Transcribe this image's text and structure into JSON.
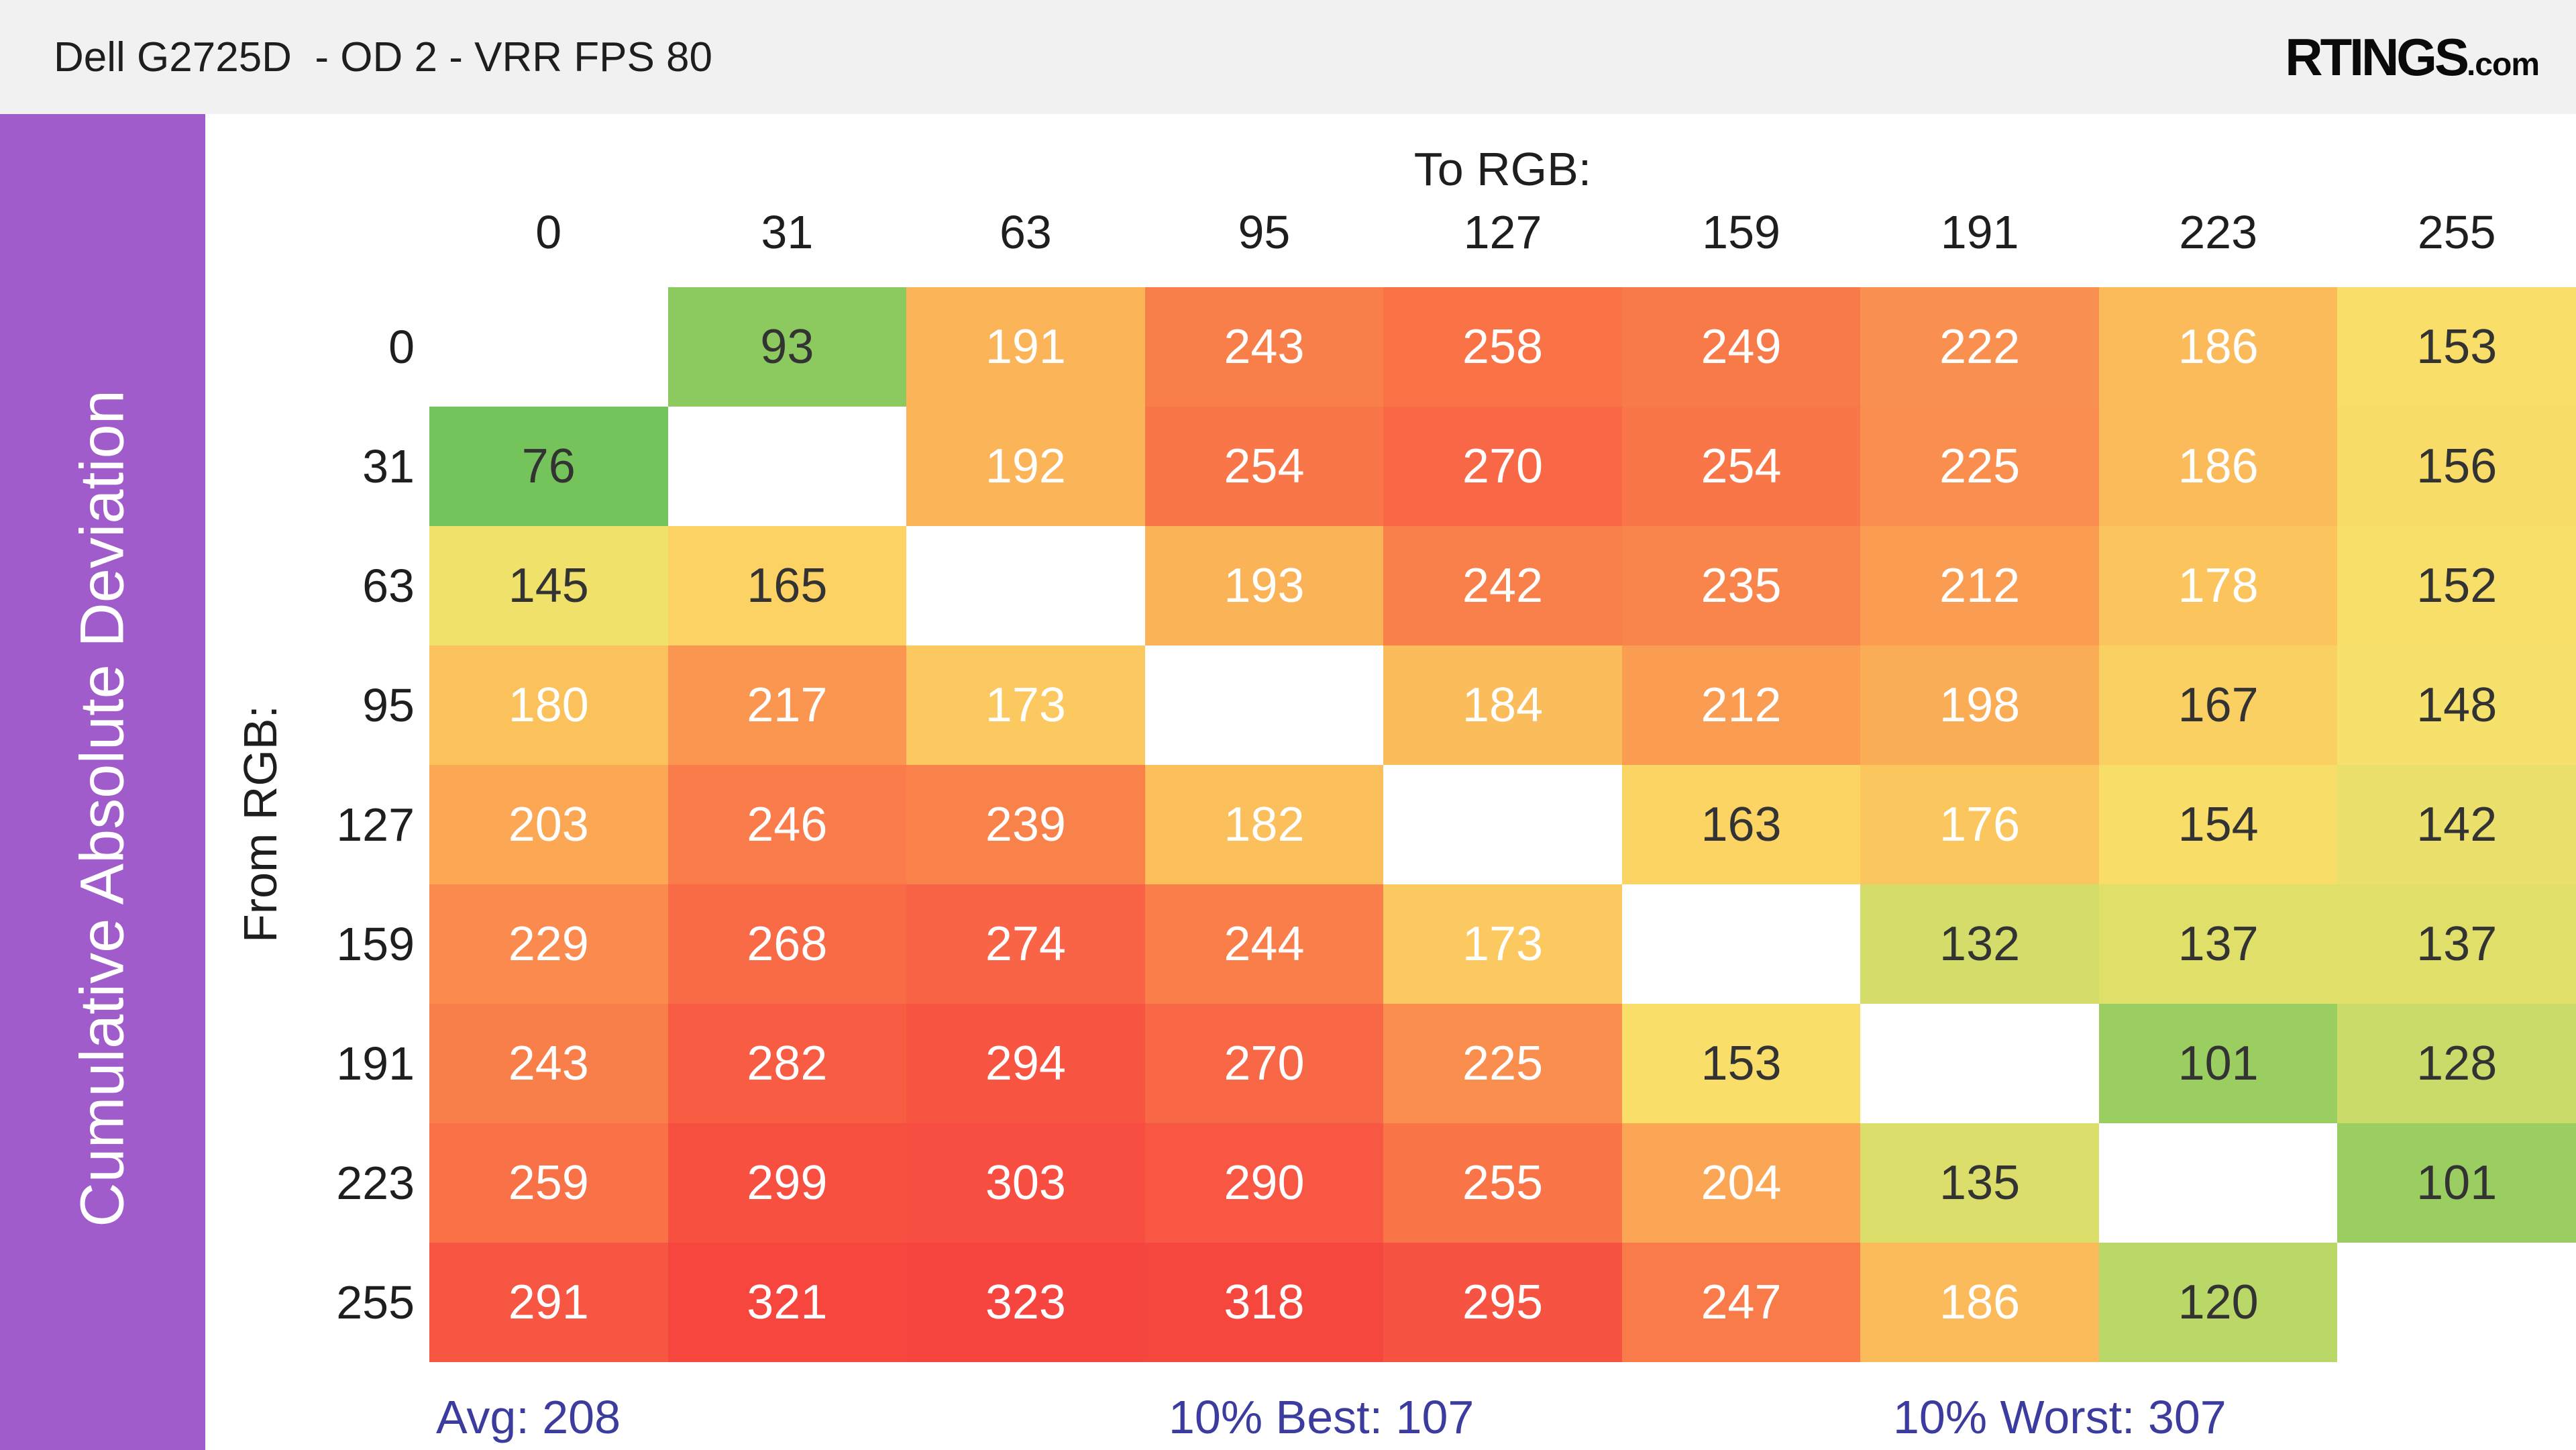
{
  "header": {
    "title": "Dell G2725D  - OD 2 - VRR FPS 80",
    "background": "#f1f1f1",
    "logo_main": "RTINGS",
    "logo_suffix": ".com"
  },
  "sidebar": {
    "label": "Cumulative Absolute Deviation",
    "color": "#a15ccb"
  },
  "chart_data": {
    "type": "heatmap",
    "title": "Cumulative Absolute Deviation",
    "x_axis_label": "To RGB:",
    "y_axis_label": "From RGB:",
    "x_labels": [
      "0",
      "31",
      "63",
      "95",
      "127",
      "159",
      "191",
      "223",
      "255"
    ],
    "y_labels": [
      "0",
      "31",
      "63",
      "95",
      "127",
      "159",
      "191",
      "223",
      "255"
    ],
    "values": [
      [
        null,
        93,
        191,
        243,
        258,
        249,
        222,
        186,
        153
      ],
      [
        76,
        null,
        192,
        254,
        270,
        254,
        225,
        186,
        156
      ],
      [
        145,
        165,
        null,
        193,
        242,
        235,
        212,
        178,
        152
      ],
      [
        180,
        217,
        173,
        null,
        184,
        212,
        198,
        167,
        148
      ],
      [
        203,
        246,
        239,
        182,
        null,
        163,
        176,
        154,
        142
      ],
      [
        229,
        268,
        274,
        244,
        173,
        null,
        132,
        137,
        137
      ],
      [
        243,
        282,
        294,
        270,
        225,
        153,
        null,
        101,
        128
      ],
      [
        259,
        299,
        303,
        290,
        255,
        204,
        135,
        null,
        101
      ],
      [
        291,
        321,
        323,
        318,
        295,
        247,
        186,
        120,
        null
      ]
    ],
    "diagonal_empty": true,
    "color_scale": [
      {
        "value": 70,
        "color": "#6cc05a"
      },
      {
        "value": 95,
        "color": "#8fcb5f"
      },
      {
        "value": 110,
        "color": "#aad365"
      },
      {
        "value": 125,
        "color": "#c2da68"
      },
      {
        "value": 140,
        "color": "#e8e06b"
      },
      {
        "value": 150,
        "color": "#f8e16b"
      },
      {
        "value": 165,
        "color": "#fbd263"
      },
      {
        "value": 180,
        "color": "#fbc25c"
      },
      {
        "value": 200,
        "color": "#fbab55"
      },
      {
        "value": 220,
        "color": "#fa924f"
      },
      {
        "value": 245,
        "color": "#f97d4a"
      },
      {
        "value": 260,
        "color": "#f97147"
      },
      {
        "value": 280,
        "color": "#f85f44"
      },
      {
        "value": 300,
        "color": "#f74f41"
      },
      {
        "value": 330,
        "color": "#f6423d"
      }
    ],
    "cell_text_color": {
      "threshold": 170,
      "light": "#ffffff",
      "dark": "#333333"
    },
    "annotations": [
      {
        "name": "avg",
        "text": "Avg: 208",
        "value": 208
      },
      {
        "name": "10-percent-best",
        "text": "10% Best: 107",
        "value": 107
      },
      {
        "name": "10-percent-worst",
        "text": "10% Worst: 307",
        "value": 307
      }
    ],
    "annotation_color": "#3c3c9e"
  }
}
